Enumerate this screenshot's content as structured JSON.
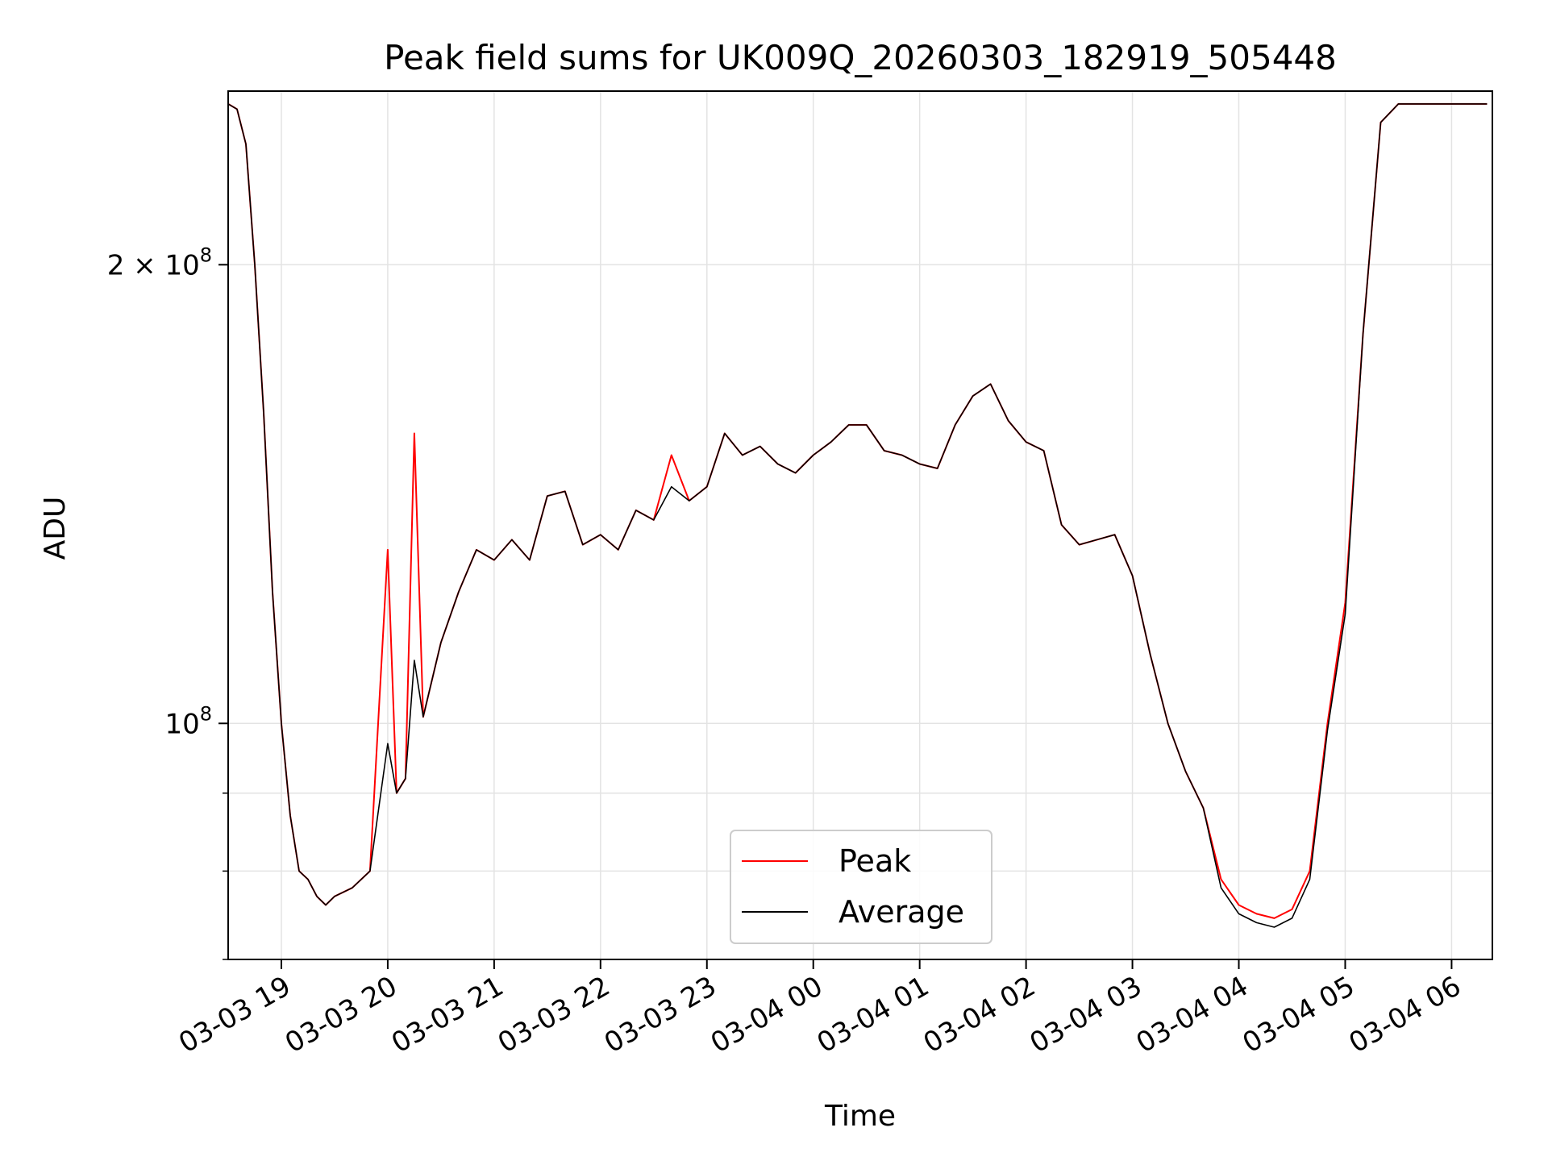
{
  "chart_data": {
    "type": "line",
    "title": "Peak field sums for UK009Q_20260303_182919_505448",
    "xlabel": "Time",
    "ylabel": "ADU",
    "yscale": "log",
    "grid": true,
    "legend_position": "lower-center",
    "xlim": [
      "2026-03-03 18:30",
      "2026-03-04 06:23"
    ],
    "ylim": [
      70000000,
      260000000
    ],
    "x_ticks": [
      "03-03 19",
      "03-03 20",
      "03-03 21",
      "03-03 22",
      "03-03 23",
      "03-04 00",
      "03-04 01",
      "03-04 02",
      "03-04 03",
      "03-04 04",
      "03-04 05",
      "03-04 06"
    ],
    "y_ticks": [
      {
        "value": 200000000,
        "mantissa": "2",
        "times": "×",
        "base": "10",
        "exp": "8"
      },
      {
        "value": 100000000,
        "mantissa": "",
        "times": "",
        "base": "10",
        "exp": "8"
      }
    ],
    "y_minor_ticks": [
      90000000,
      80000000,
      70000000
    ],
    "x": [
      "18:30",
      "18:35",
      "18:40",
      "18:45",
      "18:50",
      "18:55",
      "19:00",
      "19:05",
      "19:10",
      "19:15",
      "19:20",
      "19:25",
      "19:30",
      "19:40",
      "19:50",
      "20:00",
      "20:05",
      "20:10",
      "20:15",
      "20:20",
      "20:30",
      "20:40",
      "20:50",
      "21:00",
      "21:10",
      "21:20",
      "21:30",
      "21:40",
      "21:50",
      "22:00",
      "22:10",
      "22:20",
      "22:30",
      "22:40",
      "22:50",
      "23:00",
      "23:10",
      "23:20",
      "23:30",
      "23:40",
      "23:50",
      "00:00",
      "00:10",
      "00:20",
      "00:30",
      "00:40",
      "00:50",
      "01:00",
      "01:10",
      "01:20",
      "01:30",
      "01:40",
      "01:50",
      "02:00",
      "02:10",
      "02:20",
      "02:30",
      "02:40",
      "02:50",
      "03:00",
      "03:10",
      "03:20",
      "03:30",
      "03:40",
      "03:50",
      "04:00",
      "04:10",
      "04:20",
      "04:30",
      "04:40",
      "04:50",
      "05:00",
      "05:10",
      "05:20",
      "05:30",
      "05:40",
      "05:50",
      "06:00",
      "06:05",
      "06:10",
      "06:15",
      "06:20"
    ],
    "series": [
      {
        "name": "Peak",
        "color": "#ff0000",
        "values": [
          255000000,
          253000000,
          240000000,
          200000000,
          160000000,
          122000000,
          100000000,
          87000000,
          80000000,
          79000000,
          77000000,
          76000000,
          77000000,
          78000000,
          80000000,
          130000000,
          90000000,
          92000000,
          155000000,
          101000000,
          113000000,
          122000000,
          130000000,
          128000000,
          132000000,
          128000000,
          141000000,
          142000000,
          131000000,
          133000000,
          130000000,
          138000000,
          136000000,
          150000000,
          140000000,
          143000000,
          155000000,
          150000000,
          152000000,
          148000000,
          146000000,
          150000000,
          153000000,
          157000000,
          157000000,
          151000000,
          150000000,
          148000000,
          147000000,
          157000000,
          164000000,
          167000000,
          158000000,
          153000000,
          151000000,
          135000000,
          131000000,
          132000000,
          133000000,
          125000000,
          111000000,
          100000000,
          93000000,
          88000000,
          79000000,
          76000000,
          75000000,
          74500000,
          75500000,
          80000000,
          100000000,
          120000000,
          180000000,
          248000000,
          255000000,
          255000000,
          255000000,
          255000000,
          255000000,
          255000000,
          255000000,
          255000000
        ]
      },
      {
        "name": "Average",
        "color": "#000000",
        "values": [
          255000000,
          253000000,
          240000000,
          200000000,
          160000000,
          122000000,
          100000000,
          87000000,
          80000000,
          79000000,
          77000000,
          76000000,
          77000000,
          78000000,
          80000000,
          97000000,
          90000000,
          92000000,
          110000000,
          101000000,
          113000000,
          122000000,
          130000000,
          128000000,
          132000000,
          128000000,
          141000000,
          142000000,
          131000000,
          133000000,
          130000000,
          138000000,
          136000000,
          143000000,
          140000000,
          143000000,
          155000000,
          150000000,
          152000000,
          148000000,
          146000000,
          150000000,
          153000000,
          157000000,
          157000000,
          151000000,
          150000000,
          148000000,
          147000000,
          157000000,
          164000000,
          167000000,
          158000000,
          153000000,
          151000000,
          135000000,
          131000000,
          132000000,
          133000000,
          125000000,
          111000000,
          100000000,
          93000000,
          88000000,
          78000000,
          75000000,
          74000000,
          73500000,
          74500000,
          79000000,
          99000000,
          118000000,
          180000000,
          248000000,
          255000000,
          255000000,
          255000000,
          255000000,
          255000000,
          255000000,
          255000000,
          255000000
        ]
      }
    ]
  }
}
